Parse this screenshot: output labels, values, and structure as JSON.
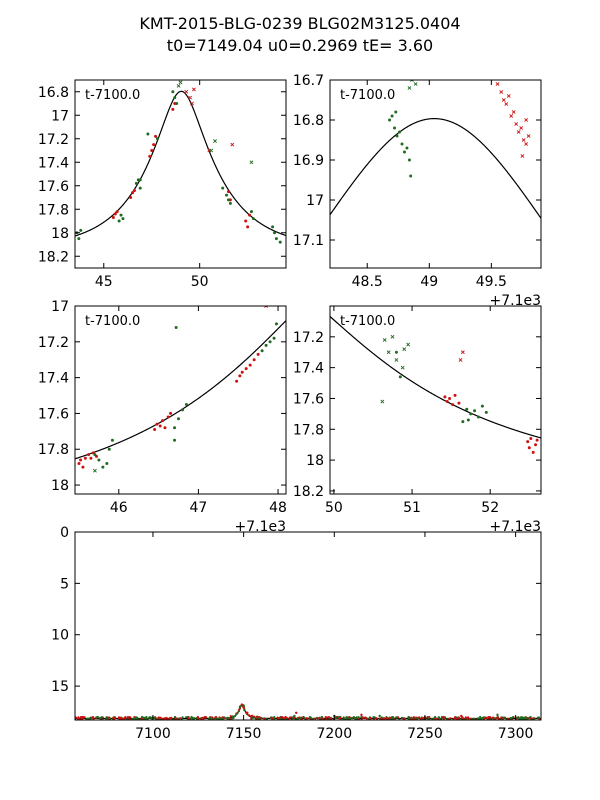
{
  "figure": {
    "title_line1": "KMT-2015-BLG-0239 BLG02M3125.0404",
    "title_line2": "t0=7149.04 u0=0.2969 tE=   3.60"
  },
  "colors": {
    "kmt_red": "#cc1111",
    "kmt_green": "#1f6b1f",
    "model": "#000000"
  },
  "chart_data": [
    {
      "id": "panel1",
      "type": "scatter",
      "inset_label": "t-7100.0",
      "xlim": [
        43.5,
        54.5
      ],
      "ylim": [
        18.3,
        16.7
      ],
      "y_inverted": true,
      "xticks": [
        45,
        50
      ],
      "yticks": [
        16.8,
        17.0,
        17.2,
        17.4,
        17.6,
        17.8,
        18.0,
        18.2
      ],
      "offset_label": "",
      "model": {
        "t0": 49.04,
        "u0": 0.2969,
        "tE": 3.6,
        "m_base": 18.15
      },
      "series": [
        {
          "color": "red",
          "marker": "dot",
          "points": [
            [
              45.5,
              17.87
            ],
            [
              45.6,
              17.84
            ],
            [
              45.7,
              17.82
            ],
            [
              46.4,
              17.7
            ],
            [
              46.5,
              17.66
            ],
            [
              46.6,
              17.64
            ],
            [
              47.4,
              17.35
            ],
            [
              47.5,
              17.3
            ],
            [
              47.6,
              17.25
            ],
            [
              47.7,
              17.18
            ],
            [
              48.6,
              16.95
            ],
            [
              48.7,
              16.9
            ],
            [
              51.5,
              17.65
            ],
            [
              51.6,
              17.72
            ],
            [
              52.4,
              17.9
            ],
            [
              52.5,
              17.95
            ],
            [
              52.6,
              17.85
            ]
          ]
        },
        {
          "color": "red",
          "marker": "x",
          "points": [
            [
              49.3,
              16.8
            ],
            [
              49.5,
              16.85
            ],
            [
              49.6,
              16.9
            ],
            [
              49.7,
              16.78
            ],
            [
              50.5,
              17.3
            ],
            [
              51.7,
              17.25
            ]
          ]
        },
        {
          "color": "green",
          "marker": "dot",
          "points": [
            [
              43.6,
              18.0
            ],
            [
              43.7,
              18.05
            ],
            [
              43.8,
              17.98
            ],
            [
              45.8,
              17.9
            ],
            [
              45.9,
              17.85
            ],
            [
              46.0,
              17.88
            ],
            [
              46.7,
              17.58
            ],
            [
              46.8,
              17.55
            ],
            [
              46.9,
              17.62
            ],
            [
              47.3,
              17.16
            ],
            [
              47.8,
              17.2
            ],
            [
              48.6,
              16.8
            ],
            [
              48.7,
              16.85
            ],
            [
              48.8,
              16.9
            ],
            [
              51.2,
              17.62
            ],
            [
              51.4,
              17.68
            ],
            [
              51.5,
              17.72
            ],
            [
              51.6,
              17.75
            ],
            [
              52.7,
              17.82
            ],
            [
              52.8,
              17.88
            ],
            [
              53.8,
              17.95
            ],
            [
              53.9,
              18.0
            ],
            [
              54.0,
              18.05
            ],
            [
              54.2,
              18.08
            ],
            [
              46.9,
              17.55
            ]
          ]
        },
        {
          "color": "green",
          "marker": "x",
          "points": [
            [
              48.9,
              16.75
            ],
            [
              49.0,
              16.72
            ],
            [
              50.6,
              17.3
            ],
            [
              50.8,
              17.22
            ],
            [
              52.7,
              17.4
            ]
          ]
        }
      ]
    },
    {
      "id": "panel2",
      "type": "scatter",
      "inset_label": "t-7100.0",
      "xlim": [
        48.2,
        49.9
      ],
      "ylim": [
        17.17,
        16.7
      ],
      "y_inverted": true,
      "xticks": [
        48.5,
        49.0,
        49.5
      ],
      "yticks": [
        16.7,
        16.8,
        16.9,
        17.0,
        17.1
      ],
      "offset_label": "+7.1e3",
      "model": {
        "t0": 49.04,
        "u0": 0.2969,
        "tE": 3.6,
        "m_base": 18.15
      },
      "series": [
        {
          "color": "green",
          "marker": "dot",
          "points": [
            [
              48.68,
              16.8
            ],
            [
              48.7,
              16.79
            ],
            [
              48.72,
              16.82
            ],
            [
              48.74,
              16.84
            ],
            [
              48.76,
              16.83
            ],
            [
              48.78,
              16.86
            ],
            [
              48.8,
              16.88
            ],
            [
              48.82,
              16.87
            ],
            [
              48.84,
              16.9
            ],
            [
              48.85,
              16.94
            ],
            [
              48.73,
              16.78
            ]
          ]
        },
        {
          "color": "green",
          "marker": "x",
          "points": [
            [
              48.86,
              16.7
            ],
            [
              48.89,
              16.71
            ],
            [
              48.84,
              16.72
            ]
          ]
        },
        {
          "color": "red",
          "marker": "x",
          "points": [
            [
              49.58,
              16.73
            ],
            [
              49.6,
              16.75
            ],
            [
              49.62,
              16.76
            ],
            [
              49.64,
              16.74
            ],
            [
              49.66,
              16.79
            ],
            [
              49.68,
              16.78
            ],
            [
              49.7,
              16.81
            ],
            [
              49.72,
              16.83
            ],
            [
              49.74,
              16.82
            ],
            [
              49.76,
              16.85
            ],
            [
              49.78,
              16.8
            ],
            [
              49.75,
              16.89
            ],
            [
              49.78,
              16.86
            ],
            [
              49.55,
              16.71
            ],
            [
              49.8,
              16.84
            ]
          ]
        }
      ]
    },
    {
      "id": "panel3",
      "type": "scatter",
      "inset_label": "t-7100.0",
      "xlim": [
        45.45,
        48.1
      ],
      "ylim": [
        18.05,
        17.0
      ],
      "y_inverted": true,
      "xticks": [
        46,
        47,
        48
      ],
      "yticks": [
        17.0,
        17.2,
        17.4,
        17.6,
        17.8,
        18.0
      ],
      "offset_label": "+7.1e3",
      "model": {
        "t0": 49.04,
        "u0": 0.2969,
        "tE": 3.6,
        "m_base": 18.15
      },
      "series": [
        {
          "color": "red",
          "marker": "dot",
          "points": [
            [
              45.5,
              17.88
            ],
            [
              45.52,
              17.86
            ],
            [
              45.55,
              17.9
            ],
            [
              45.58,
              17.85
            ],
            [
              45.62,
              17.83
            ],
            [
              45.65,
              17.85
            ],
            [
              45.68,
              17.82
            ],
            [
              45.72,
              17.84
            ],
            [
              46.45,
              17.69
            ],
            [
              46.48,
              17.66
            ],
            [
              46.52,
              17.67
            ],
            [
              46.55,
              17.64
            ],
            [
              46.58,
              17.68
            ],
            [
              46.62,
              17.62
            ],
            [
              46.65,
              17.6
            ],
            [
              47.48,
              17.42
            ],
            [
              47.52,
              17.39
            ],
            [
              47.55,
              17.37
            ],
            [
              47.6,
              17.35
            ],
            [
              47.65,
              17.33
            ],
            [
              47.7,
              17.3
            ],
            [
              47.75,
              17.27
            ]
          ]
        },
        {
          "color": "green",
          "marker": "dot",
          "points": [
            [
              45.7,
              17.83
            ],
            [
              45.75,
              17.86
            ],
            [
              45.8,
              17.9
            ],
            [
              45.85,
              17.88
            ],
            [
              45.88,
              17.8
            ],
            [
              45.92,
              17.75
            ],
            [
              46.7,
              17.68
            ],
            [
              46.75,
              17.63
            ],
            [
              46.8,
              17.58
            ],
            [
              46.85,
              17.55
            ],
            [
              46.7,
              17.75
            ],
            [
              47.8,
              17.25
            ],
            [
              47.85,
              17.22
            ],
            [
              47.9,
              17.2
            ],
            [
              47.95,
              17.18
            ],
            [
              47.98,
              17.1
            ],
            [
              46.72,
              17.12
            ]
          ]
        },
        {
          "color": "red",
          "marker": "x",
          "points": [
            [
              47.85,
              17.0
            ]
          ]
        },
        {
          "color": "green",
          "marker": "x",
          "points": [
            [
              45.7,
              17.92
            ]
          ]
        }
      ]
    },
    {
      "id": "panel4",
      "type": "scatter",
      "inset_label": "t-7100.0",
      "xlim": [
        49.95,
        52.65
      ],
      "ylim": [
        18.22,
        17.0
      ],
      "y_inverted": true,
      "xticks": [
        50,
        51,
        52
      ],
      "yticks": [
        17.2,
        17.4,
        17.6,
        17.8,
        18.0,
        18.2
      ],
      "offset_label": "+7.1e3",
      "model": {
        "t0": 49.04,
        "u0": 0.2969,
        "tE": 3.6,
        "m_base": 18.15
      },
      "series": [
        {
          "color": "red",
          "marker": "dot",
          "points": [
            [
              51.42,
              17.59
            ],
            [
              51.45,
              17.62
            ],
            [
              51.48,
              17.6
            ],
            [
              51.52,
              17.64
            ],
            [
              51.55,
              17.58
            ],
            [
              51.6,
              17.63
            ],
            [
              52.48,
              17.88
            ],
            [
              52.5,
              17.92
            ],
            [
              52.52,
              17.86
            ],
            [
              52.55,
              17.95
            ],
            [
              52.58,
              17.9
            ],
            [
              52.6,
              17.87
            ]
          ]
        },
        {
          "color": "green",
          "marker": "dot",
          "points": [
            [
              50.8,
              17.3
            ],
            [
              50.85,
              17.46
            ],
            [
              51.7,
              17.67
            ],
            [
              51.75,
              17.7
            ],
            [
              51.8,
              17.68
            ],
            [
              51.85,
              17.72
            ],
            [
              51.9,
              17.65
            ],
            [
              51.95,
              17.69
            ],
            [
              51.65,
              17.75
            ],
            [
              51.72,
              17.74
            ]
          ]
        },
        {
          "color": "green",
          "marker": "x",
          "points": [
            [
              50.65,
              17.22
            ],
            [
              50.7,
              17.3
            ],
            [
              50.75,
              17.2
            ],
            [
              50.8,
              17.35
            ],
            [
              50.9,
              17.28
            ],
            [
              50.95,
              17.25
            ],
            [
              50.62,
              17.62
            ],
            [
              50.88,
              17.4
            ]
          ]
        },
        {
          "color": "red",
          "marker": "x",
          "points": [
            [
              51.65,
              17.3
            ],
            [
              51.62,
              17.35
            ]
          ]
        }
      ]
    },
    {
      "id": "panel5",
      "type": "scatter",
      "inset_label": "",
      "xlim": [
        7057,
        7314
      ],
      "ylim": [
        18.3,
        0
      ],
      "y_inverted": true,
      "xticks": [
        7100,
        7150,
        7200,
        7250,
        7300
      ],
      "yticks": [
        0,
        5,
        10,
        15
      ],
      "offset_label": "",
      "model": {
        "t0": 7149.04,
        "u0": 0.2969,
        "tE": 3.6,
        "m_base": 18.15
      },
      "baseline_mag": 18.15,
      "highlight_points": [
        [
          7148,
          17.0
        ],
        [
          7149,
          16.8
        ],
        [
          7150,
          16.9
        ],
        [
          7152,
          17.6
        ],
        [
          7178,
          17.9
        ],
        [
          7179,
          17.6
        ],
        [
          7200,
          17.9
        ],
        [
          7215,
          17.8
        ],
        [
          7225,
          17.9
        ],
        [
          7270,
          17.9
        ],
        [
          7290,
          17.8
        ]
      ]
    }
  ]
}
